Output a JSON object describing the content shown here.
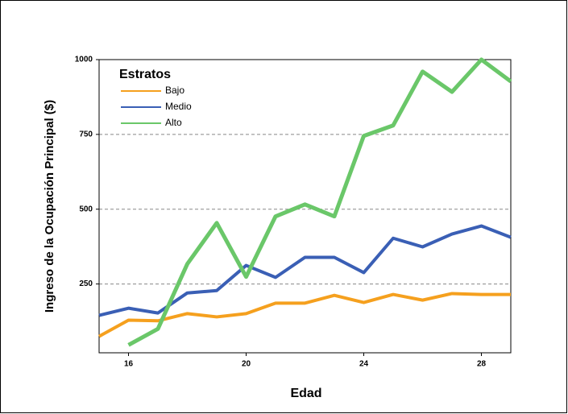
{
  "chart_data": {
    "type": "line",
    "x_label": "Edad",
    "y_label": "Ingreso de la Ocupación Principal ($)",
    "legend_title": "Estratos",
    "x": [
      15,
      16,
      17,
      18,
      19,
      20,
      21,
      22,
      23,
      24,
      25,
      26,
      27,
      28,
      29
    ],
    "series": [
      {
        "name": "Bajo",
        "color": "#f5a01e",
        "values": [
          75,
          129,
          127,
          151,
          140,
          151,
          186,
          186,
          212,
          188,
          215,
          196,
          218,
          215,
          215
        ]
      },
      {
        "name": "Medio",
        "color": "#3a5fb5",
        "values": [
          145,
          169,
          153,
          220,
          228,
          312,
          272,
          339,
          339,
          288,
          403,
          374,
          417,
          444,
          406
        ]
      },
      {
        "name": "Alto",
        "color": "#6ac769",
        "values": [
          null,
          46,
          100,
          317,
          454,
          274,
          476,
          516,
          476,
          745,
          780,
          960,
          892,
          1000,
          927
        ]
      }
    ],
    "xlim": [
      15,
      29
    ],
    "xticks": [
      16,
      20,
      24,
      28
    ],
    "ylim": [
      20,
      1000
    ],
    "yticks": [
      250,
      500,
      750,
      1000
    ],
    "grid": true
  }
}
